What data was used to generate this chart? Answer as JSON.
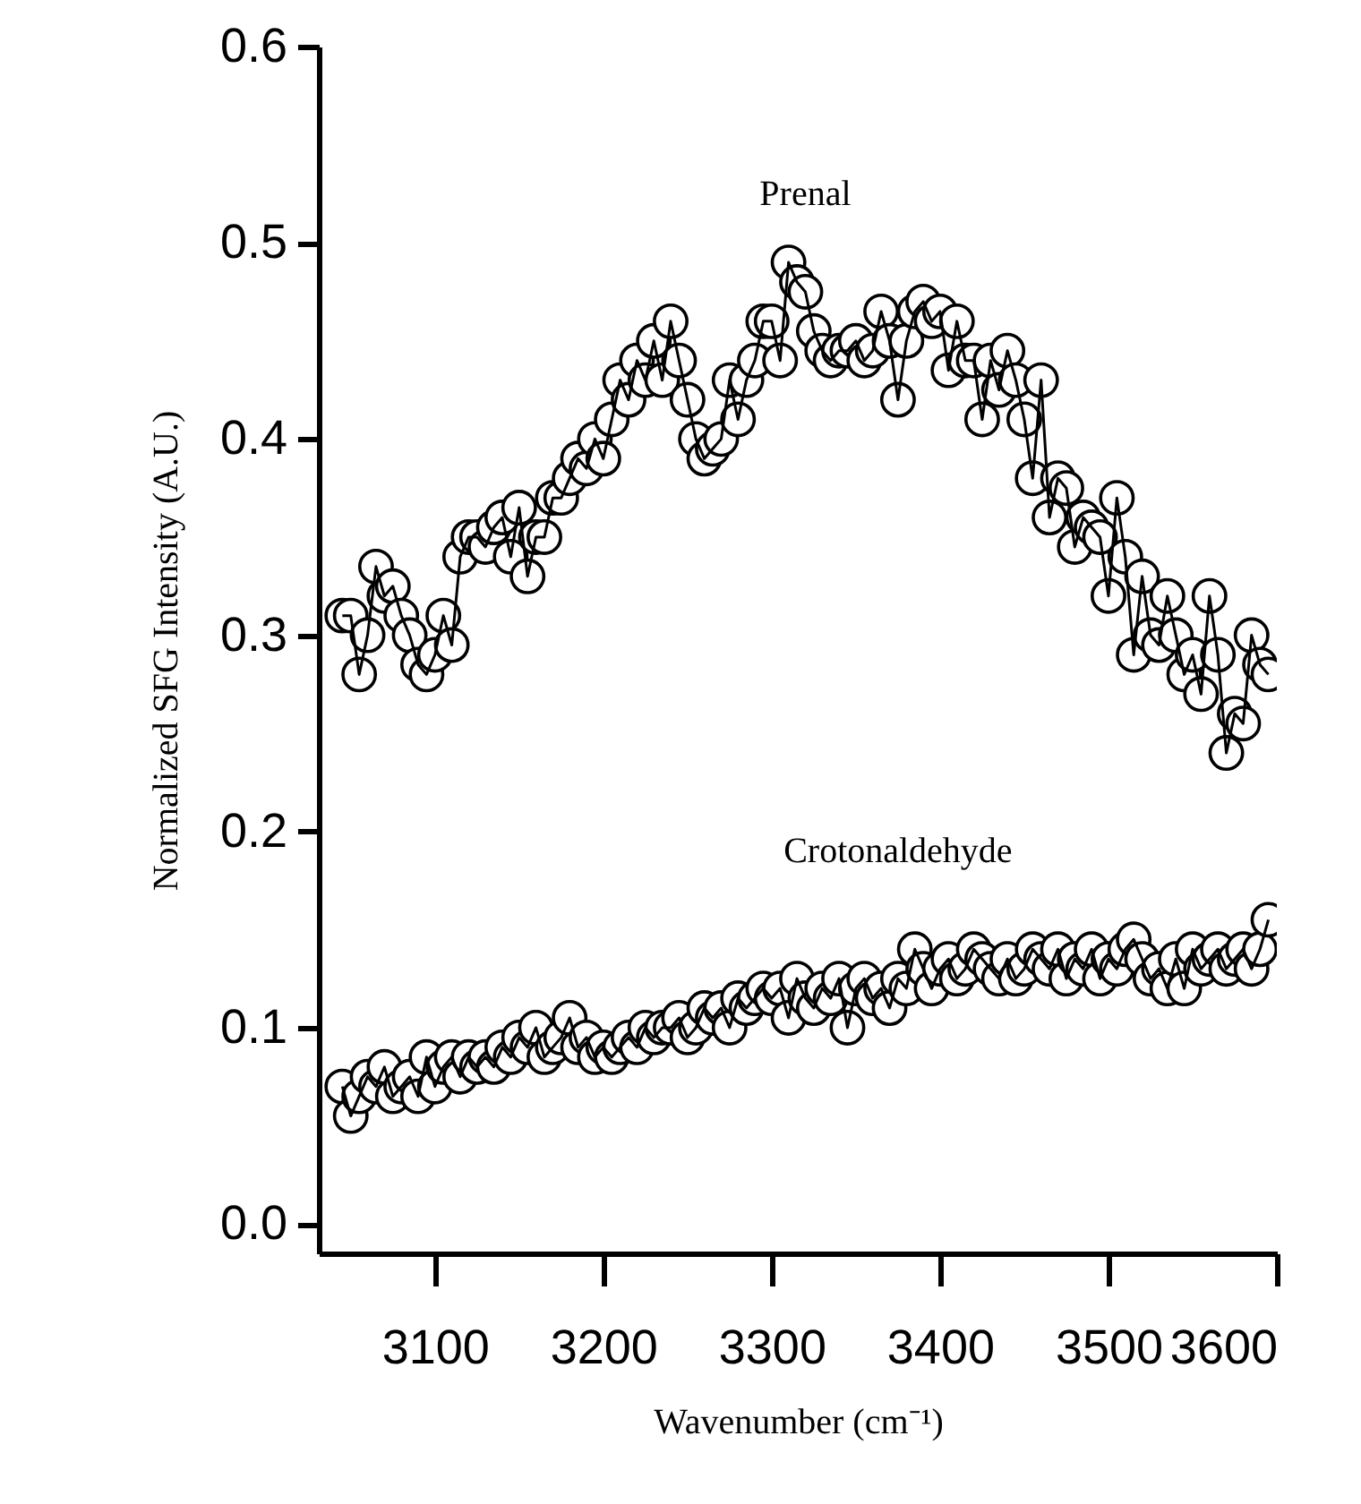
{
  "chart_data": {
    "type": "line",
    "xlabel": "Wavenumber (cm⁻¹)",
    "ylabel": "Normalized SFG Intensity (A.U.)",
    "xlim": [
      3031,
      3600
    ],
    "xticks": [
      3100,
      3200,
      3300,
      3400,
      3500,
      3600
    ],
    "ylim": [
      -0.015,
      0.6
    ],
    "yticks": [
      {
        "value": 0,
        "label": "0.0"
      },
      {
        "value": 0.1,
        "label": "0.1"
      },
      {
        "value": 0.2,
        "label": "0.2"
      },
      {
        "value": 0.3,
        "label": "0.3"
      },
      {
        "value": 0.4,
        "label": "0.4"
      },
      {
        "value": 0.5,
        "label": "0.5"
      },
      {
        "value": 0.6,
        "label": "0.6"
      }
    ],
    "grid": false,
    "marker": "circle",
    "line_style": "solid",
    "x": [
      3045,
      3050,
      3055,
      3060,
      3065,
      3070,
      3075,
      3080,
      3085,
      3090,
      3095,
      3100,
      3105,
      3110,
      3115,
      3120,
      3125,
      3130,
      3135,
      3140,
      3145,
      3150,
      3155,
      3160,
      3165,
      3170,
      3175,
      3180,
      3185,
      3190,
      3195,
      3200,
      3205,
      3210,
      3215,
      3220,
      3225,
      3230,
      3235,
      3240,
      3245,
      3250,
      3255,
      3260,
      3265,
      3270,
      3275,
      3280,
      3285,
      3290,
      3295,
      3300,
      3305,
      3310,
      3315,
      3320,
      3325,
      3330,
      3335,
      3340,
      3345,
      3350,
      3355,
      3360,
      3365,
      3370,
      3375,
      3380,
      3385,
      3390,
      3395,
      3400,
      3405,
      3410,
      3415,
      3420,
      3425,
      3430,
      3435,
      3440,
      3445,
      3450,
      3455,
      3460,
      3465,
      3470,
      3475,
      3480,
      3485,
      3490,
      3495,
      3500,
      3505,
      3510,
      3515,
      3520,
      3525,
      3530,
      3535,
      3540,
      3545,
      3550,
      3555,
      3560,
      3565,
      3570,
      3575,
      3580,
      3585,
      3590,
      3595
    ],
    "series": [
      {
        "name": "Prenal",
        "color": "#000000",
        "values": [
          0.31,
          0.31,
          0.28,
          0.3,
          0.335,
          0.32,
          0.325,
          0.31,
          0.3,
          0.285,
          0.28,
          0.29,
          0.31,
          0.295,
          0.34,
          0.35,
          0.35,
          0.345,
          0.355,
          0.36,
          0.34,
          0.365,
          0.33,
          0.35,
          0.35,
          0.37,
          0.37,
          0.38,
          0.39,
          0.385,
          0.4,
          0.39,
          0.41,
          0.43,
          0.42,
          0.44,
          0.43,
          0.45,
          0.43,
          0.46,
          0.44,
          0.42,
          0.4,
          0.39,
          0.395,
          0.4,
          0.43,
          0.41,
          0.43,
          0.44,
          0.46,
          0.46,
          0.44,
          0.49,
          0.48,
          0.475,
          0.455,
          0.445,
          0.44,
          0.445,
          0.445,
          0.45,
          0.44,
          0.445,
          0.465,
          0.45,
          0.42,
          0.45,
          0.465,
          0.47,
          0.46,
          0.465,
          0.435,
          0.46,
          0.44,
          0.44,
          0.41,
          0.44,
          0.425,
          0.445,
          0.43,
          0.41,
          0.38,
          0.43,
          0.36,
          0.38,
          0.375,
          0.345,
          0.36,
          0.355,
          0.35,
          0.32,
          0.37,
          0.34,
          0.29,
          0.33,
          0.3,
          0.295,
          0.32,
          0.3,
          0.28,
          0.29,
          0.27,
          0.32,
          0.29,
          0.24,
          0.26,
          0.255,
          0.3,
          0.285,
          0.28
        ]
      },
      {
        "name": "Crotonaldehyde",
        "color": "#000000",
        "values": [
          0.07,
          0.055,
          0.065,
          0.075,
          0.07,
          0.08,
          0.065,
          0.07,
          0.075,
          0.065,
          0.085,
          0.07,
          0.08,
          0.085,
          0.075,
          0.085,
          0.08,
          0.085,
          0.08,
          0.09,
          0.085,
          0.095,
          0.09,
          0.1,
          0.085,
          0.09,
          0.095,
          0.105,
          0.09,
          0.095,
          0.085,
          0.09,
          0.085,
          0.09,
          0.095,
          0.09,
          0.1,
          0.095,
          0.1,
          0.1,
          0.105,
          0.095,
          0.1,
          0.11,
          0.105,
          0.11,
          0.1,
          0.115,
          0.11,
          0.115,
          0.12,
          0.115,
          0.12,
          0.105,
          0.125,
          0.115,
          0.11,
          0.12,
          0.115,
          0.125,
          0.1,
          0.12,
          0.125,
          0.115,
          0.12,
          0.11,
          0.125,
          0.12,
          0.14,
          0.13,
          0.12,
          0.13,
          0.135,
          0.125,
          0.13,
          0.14,
          0.135,
          0.13,
          0.125,
          0.135,
          0.125,
          0.13,
          0.14,
          0.135,
          0.13,
          0.14,
          0.125,
          0.135,
          0.13,
          0.14,
          0.125,
          0.135,
          0.13,
          0.14,
          0.145,
          0.135,
          0.125,
          0.13,
          0.12,
          0.135,
          0.12,
          0.14,
          0.13,
          0.135,
          0.14,
          0.13,
          0.135,
          0.14,
          0.13,
          0.14,
          0.155
        ]
      }
    ]
  }
}
